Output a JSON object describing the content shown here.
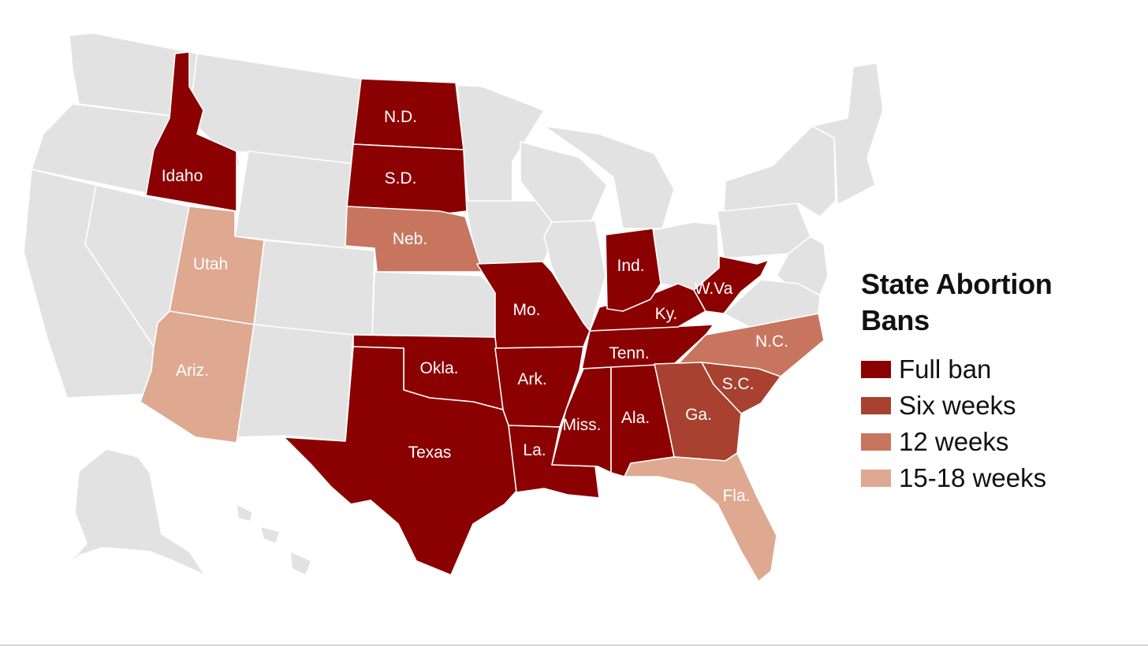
{
  "map": {
    "type": "choropleth",
    "region": "United States",
    "colors": {
      "full_ban": "#8b0000",
      "six_weeks": "#a8412f",
      "twelve_weeks": "#c8755f",
      "fifteen_eighteen_weeks": "#dfa891",
      "no_ban": "#e2e2e2"
    },
    "states": [
      {
        "abbr": "Idaho",
        "category": "full_ban"
      },
      {
        "abbr": "N.D.",
        "category": "full_ban"
      },
      {
        "abbr": "S.D.",
        "category": "full_ban"
      },
      {
        "abbr": "Neb.",
        "category": "twelve_weeks"
      },
      {
        "abbr": "Utah",
        "category": "fifteen_eighteen_weeks"
      },
      {
        "abbr": "Ariz.",
        "category": "fifteen_eighteen_weeks"
      },
      {
        "abbr": "Mo.",
        "category": "full_ban"
      },
      {
        "abbr": "Okla.",
        "category": "full_ban"
      },
      {
        "abbr": "Ark.",
        "category": "full_ban"
      },
      {
        "abbr": "Texas",
        "category": "full_ban"
      },
      {
        "abbr": "La.",
        "category": "full_ban"
      },
      {
        "abbr": "Miss.",
        "category": "full_ban"
      },
      {
        "abbr": "Ala.",
        "category": "full_ban"
      },
      {
        "abbr": "Tenn.",
        "category": "full_ban"
      },
      {
        "abbr": "Ky.",
        "category": "full_ban"
      },
      {
        "abbr": "Ind.",
        "category": "full_ban"
      },
      {
        "abbr": "W.Va",
        "category": "full_ban"
      },
      {
        "abbr": "N.C.",
        "category": "twelve_weeks"
      },
      {
        "abbr": "S.C.",
        "category": "six_weeks"
      },
      {
        "abbr": "Ga.",
        "category": "six_weeks"
      },
      {
        "abbr": "Fla.",
        "category": "fifteen_eighteen_weeks"
      }
    ]
  },
  "legend": {
    "title": "State Abortion Bans",
    "items": [
      {
        "label": "Full ban",
        "color": "#8b0000"
      },
      {
        "label": "Six weeks",
        "color": "#a8412f"
      },
      {
        "label": "12 weeks",
        "color": "#c8755f"
      },
      {
        "label": "15-18 weeks",
        "color": "#dfa891"
      }
    ]
  }
}
